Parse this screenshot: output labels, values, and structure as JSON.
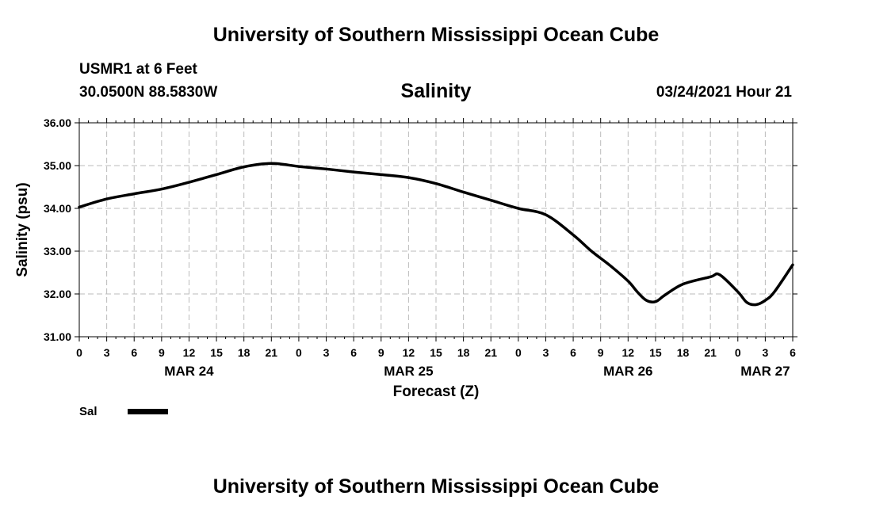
{
  "header": {
    "title_top": "University of Southern Mississippi Ocean Cube",
    "station": "USMR1 at 6 Feet",
    "coordinates": "30.0500N 88.5830W",
    "parameter": "Salinity",
    "datetime": "03/24/2021 Hour 21"
  },
  "footer": {
    "title_bottom": "University of Southern Mississippi Ocean Cube"
  },
  "chart_data": {
    "type": "line",
    "title": "Salinity",
    "xlabel": "Forecast (Z)",
    "ylabel": "Salinity (psu)",
    "ylim": [
      31.0,
      36.0
    ],
    "xlim": [
      0,
      78
    ],
    "x_unit": "hours from MAR 24 00Z",
    "y_ticks": [
      "31.00",
      "32.00",
      "33.00",
      "34.00",
      "35.00",
      "36.00"
    ],
    "x_tick_hours": [
      0,
      3,
      6,
      9,
      12,
      15,
      18,
      21,
      24,
      27,
      30,
      33,
      36,
      39,
      42,
      45,
      48,
      51,
      54,
      57,
      60,
      63,
      66,
      69,
      72,
      75,
      78
    ],
    "x_tick_labels": [
      "0",
      "3",
      "6",
      "9",
      "12",
      "15",
      "18",
      "21",
      "0",
      "3",
      "6",
      "9",
      "12",
      "15",
      "18",
      "21",
      "0",
      "3",
      "6",
      "9",
      "12",
      "15",
      "18",
      "21",
      "0",
      "3",
      "6"
    ],
    "date_labels": [
      {
        "hour": 12,
        "label": "MAR 24"
      },
      {
        "hour": 36,
        "label": "MAR 25"
      },
      {
        "hour": 60,
        "label": "MAR 26"
      },
      {
        "hour": 75,
        "label": "MAR 27"
      }
    ],
    "grid": true,
    "legend": [
      {
        "name": "Sal",
        "position": "bottom-left"
      }
    ],
    "series": [
      {
        "name": "Sal",
        "x": [
          0,
          3,
          6,
          9,
          12,
          15,
          18,
          21,
          24,
          27,
          30,
          33,
          36,
          39,
          42,
          45,
          48,
          51,
          54,
          56,
          58,
          60,
          61,
          62,
          63,
          64,
          66,
          69,
          70,
          72,
          73,
          74,
          75,
          76,
          78
        ],
        "values": [
          34.03,
          34.22,
          34.34,
          34.45,
          34.61,
          34.79,
          34.97,
          35.05,
          34.98,
          34.92,
          34.85,
          34.79,
          34.72,
          34.58,
          34.38,
          34.19,
          34.0,
          33.85,
          33.38,
          33.0,
          32.67,
          32.3,
          32.05,
          31.85,
          31.82,
          31.97,
          32.23,
          32.4,
          32.45,
          32.05,
          31.8,
          31.75,
          31.85,
          32.05,
          32.68
        ]
      }
    ]
  }
}
